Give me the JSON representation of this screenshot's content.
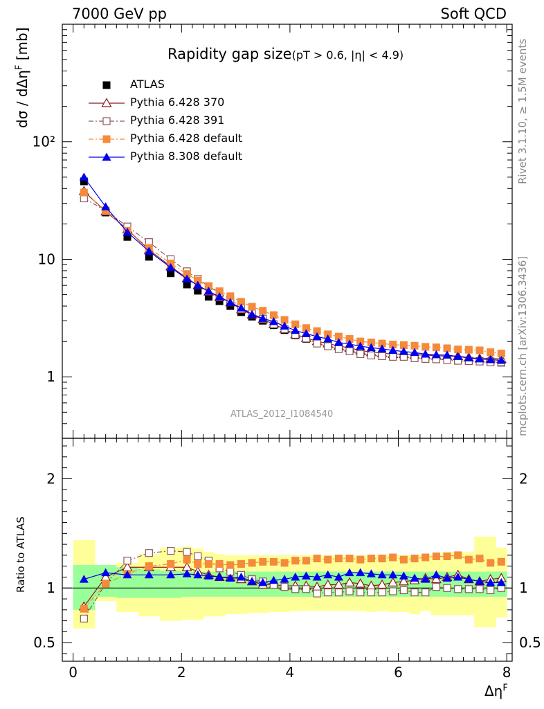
{
  "header": {
    "left": "7000 GeV pp",
    "right": "Soft QCD"
  },
  "side_labels": {
    "rivet": "Rivet 3.1.10, ≥ 1.5M events",
    "mcplots": "mcplots.cern.ch [arXiv:1306.3436]"
  },
  "chart_data": [
    {
      "type": "line",
      "title": "Rapidity gap size",
      "subtitle": "(pT > 0.6, |η| < 4.9)",
      "watermark": "ATLAS_2012_I1084540",
      "xlabel": "Δη^F",
      "ylabel": "dσ / dΔη^F [mb]",
      "yscale": "log",
      "xlim": [
        -0.2,
        8.1
      ],
      "ylim": [
        0.3,
        1000
      ],
      "ytick_labels": [
        {
          "v": 1,
          "t": "1"
        },
        {
          "v": 10,
          "t": "10"
        },
        {
          "v": 100,
          "t": "10²"
        }
      ],
      "legend_position": "top-left",
      "x": [
        0.2,
        0.6,
        1.0,
        1.4,
        1.8,
        2.1,
        2.3,
        2.5,
        2.7,
        2.9,
        3.1,
        3.3,
        3.5,
        3.7,
        3.9,
        4.1,
        4.3,
        4.5,
        4.7,
        4.9,
        5.1,
        5.3,
        5.5,
        5.7,
        5.9,
        6.1,
        6.3,
        6.5,
        6.7,
        6.9,
        7.1,
        7.3,
        7.5,
        7.7,
        7.9
      ],
      "series": [
        {
          "name": "ATLAS",
          "color": "#000000",
          "marker": "square-filled",
          "line": "none",
          "values": [
            46,
            25,
            15.5,
            10.5,
            7.6,
            6.1,
            5.4,
            4.8,
            4.4,
            4.0,
            3.55,
            3.25,
            3.0,
            2.75,
            2.5,
            2.25,
            2.1,
            2.0,
            1.88,
            1.78,
            1.7,
            1.62,
            1.57,
            1.55,
            1.52,
            1.5,
            1.47,
            1.44,
            1.42,
            1.4,
            1.38,
            1.37,
            1.36,
            1.35,
            1.32
          ]
        },
        {
          "name": "Pythia 6.428 370",
          "color": "#8b1a1a",
          "marker": "triangle-open",
          "line": "solid",
          "values": [
            38,
            25.5,
            18,
            12,
            8.7,
            6.9,
            6.0,
            5.3,
            4.75,
            4.3,
            3.75,
            3.38,
            3.08,
            2.8,
            2.55,
            2.3,
            2.14,
            2.01,
            1.92,
            1.83,
            1.76,
            1.68,
            1.62,
            1.59,
            1.56,
            1.56,
            1.54,
            1.53,
            1.51,
            1.5,
            1.5,
            1.46,
            1.43,
            1.43,
            1.42
          ]
        },
        {
          "name": "Pythia 6.428 391",
          "color": "#8b5a5a",
          "marker": "square-open",
          "line": "dashdot",
          "values": [
            33,
            26,
            19,
            14,
            10,
            7.9,
            6.8,
            5.9,
            5.15,
            4.55,
            3.9,
            3.45,
            3.12,
            2.8,
            2.55,
            2.28,
            2.12,
            1.92,
            1.82,
            1.72,
            1.65,
            1.56,
            1.52,
            1.5,
            1.48,
            1.48,
            1.44,
            1.42,
            1.41,
            1.39,
            1.37,
            1.36,
            1.35,
            1.33,
            1.33
          ]
        },
        {
          "name": "Pythia 6.428 default",
          "color": "#f58a3a",
          "marker": "square-filled",
          "line": "dashdot",
          "values": [
            37,
            26,
            17.5,
            12.5,
            9.2,
            7.5,
            6.6,
            5.9,
            5.35,
            4.85,
            4.35,
            3.95,
            3.65,
            3.35,
            3.05,
            2.8,
            2.6,
            2.45,
            2.3,
            2.2,
            2.1,
            2.0,
            1.96,
            1.92,
            1.88,
            1.86,
            1.84,
            1.8,
            1.78,
            1.75,
            1.71,
            1.7,
            1.68,
            1.62,
            1.58
          ]
        },
        {
          "name": "Pythia 8.308 default",
          "color": "#0000ee",
          "marker": "triangle-filled",
          "line": "solid",
          "values": [
            50,
            28,
            17,
            11.7,
            8.5,
            6.8,
            6.0,
            5.35,
            4.8,
            4.3,
            3.85,
            3.4,
            3.14,
            2.95,
            2.7,
            2.48,
            2.33,
            2.2,
            2.1,
            1.96,
            1.9,
            1.82,
            1.77,
            1.73,
            1.68,
            1.64,
            1.61,
            1.56,
            1.54,
            1.53,
            1.49,
            1.45,
            1.42,
            1.4,
            1.38
          ]
        }
      ]
    },
    {
      "type": "line",
      "ylabel": "Ratio to ATLAS",
      "xlabel": "Δη^F",
      "xlim": [
        -0.2,
        8.1
      ],
      "ylim": [
        0.33,
        2.37
      ],
      "ytick_labels": [
        {
          "v": 0.5,
          "t": "0.5"
        },
        {
          "v": 1,
          "t": "1"
        },
        {
          "v": 2,
          "t": "2"
        }
      ],
      "xtick_labels": [
        {
          "v": 0,
          "t": "0"
        },
        {
          "v": 2,
          "t": "2"
        },
        {
          "v": 4,
          "t": "4"
        },
        {
          "v": 6,
          "t": "6"
        },
        {
          "v": 8,
          "t": "8"
        }
      ],
      "bands": {
        "edges": [
          0,
          0.4,
          0.8,
          1.2,
          1.6,
          2.0,
          2.2,
          2.4,
          2.6,
          2.8,
          3.0,
          3.2,
          3.4,
          3.6,
          3.8,
          4.0,
          4.2,
          4.4,
          4.6,
          4.8,
          5.0,
          5.2,
          5.4,
          5.6,
          5.8,
          6.0,
          6.2,
          6.4,
          6.6,
          6.8,
          7.0,
          7.2,
          7.4,
          7.6,
          7.8,
          8.0
        ],
        "green_lo": [
          0.8,
          0.92,
          0.91,
          0.91,
          0.91,
          0.92,
          0.92,
          0.92,
          0.92,
          0.92,
          0.92,
          0.92,
          0.92,
          0.92,
          0.92,
          0.92,
          0.92,
          0.92,
          0.92,
          0.92,
          0.92,
          0.92,
          0.92,
          0.92,
          0.92,
          0.92,
          0.92,
          0.92,
          0.92,
          0.92,
          0.92,
          0.92,
          0.92,
          0.92,
          0.92
        ],
        "green_hi": [
          1.21,
          1.21,
          1.19,
          1.17,
          1.16,
          1.15,
          1.15,
          1.15,
          1.15,
          1.15,
          1.15,
          1.15,
          1.15,
          1.15,
          1.15,
          1.15,
          1.15,
          1.15,
          1.15,
          1.15,
          1.15,
          1.15,
          1.15,
          1.15,
          1.15,
          1.15,
          1.15,
          1.15,
          1.15,
          1.15,
          1.15,
          1.15,
          1.15,
          1.15,
          1.15
        ],
        "yellow_lo": [
          0.63,
          0.88,
          0.78,
          0.74,
          0.7,
          0.71,
          0.71,
          0.74,
          0.74,
          0.76,
          0.76,
          0.77,
          0.77,
          0.78,
          0.78,
          0.79,
          0.79,
          0.79,
          0.79,
          0.79,
          0.79,
          0.79,
          0.78,
          0.79,
          0.78,
          0.78,
          0.76,
          0.79,
          0.75,
          0.75,
          0.75,
          0.75,
          0.64,
          0.64,
          0.73
        ],
        "yellow_hi": [
          1.44,
          1.2,
          1.23,
          1.31,
          1.37,
          1.38,
          1.36,
          1.33,
          1.31,
          1.3,
          1.3,
          1.3,
          1.3,
          1.3,
          1.3,
          1.3,
          1.3,
          1.3,
          1.3,
          1.3,
          1.3,
          1.3,
          1.3,
          1.3,
          1.3,
          1.3,
          1.3,
          1.3,
          1.3,
          1.33,
          1.33,
          1.33,
          1.47,
          1.47,
          1.37
        ]
      },
      "series": [
        {
          "name": "Pythia 6.428 370",
          "values": [
            0.83,
            1.1,
            1.19,
            1.19,
            1.19,
            1.19,
            1.15,
            1.12,
            1.1,
            1.1,
            1.08,
            1.06,
            1.03,
            1.03,
            1.02,
            1.02,
            1.02,
            1.01,
            1.03,
            1.03,
            1.05,
            1.04,
            1.02,
            1.03,
            1.05,
            1.06,
            1.07,
            1.09,
            1.08,
            1.1,
            1.12,
            1.08,
            1.06,
            1.08,
            1.09
          ]
        },
        {
          "name": "Pythia 6.428 391",
          "values": [
            0.72,
            1.04,
            1.25,
            1.32,
            1.34,
            1.33,
            1.29,
            1.25,
            1.18,
            1.15,
            1.12,
            1.08,
            1.06,
            1.03,
            1.01,
            0.99,
            0.99,
            0.95,
            0.96,
            0.96,
            0.97,
            0.96,
            0.96,
            0.96,
            0.97,
            0.98,
            0.96,
            0.96,
            1.01,
            1.0,
            0.99,
            0.99,
            0.99,
            0.98,
            1.0
          ]
        },
        {
          "name": "Pythia 6.428 default",
          "values": [
            0.81,
            1.04,
            1.13,
            1.2,
            1.22,
            1.26,
            1.22,
            1.22,
            1.22,
            1.21,
            1.22,
            1.23,
            1.24,
            1.24,
            1.23,
            1.25,
            1.25,
            1.27,
            1.26,
            1.27,
            1.27,
            1.26,
            1.27,
            1.27,
            1.28,
            1.26,
            1.27,
            1.28,
            1.29,
            1.29,
            1.3,
            1.26,
            1.27,
            1.23,
            1.24
          ]
        },
        {
          "name": "Pythia 8.308 default",
          "values": [
            1.08,
            1.14,
            1.12,
            1.12,
            1.12,
            1.13,
            1.12,
            1.11,
            1.1,
            1.09,
            1.1,
            1.06,
            1.05,
            1.07,
            1.08,
            1.1,
            1.11,
            1.1,
            1.12,
            1.1,
            1.14,
            1.14,
            1.13,
            1.12,
            1.12,
            1.11,
            1.09,
            1.08,
            1.12,
            1.09,
            1.1,
            1.08,
            1.06,
            1.05,
            1.05
          ]
        }
      ]
    }
  ]
}
